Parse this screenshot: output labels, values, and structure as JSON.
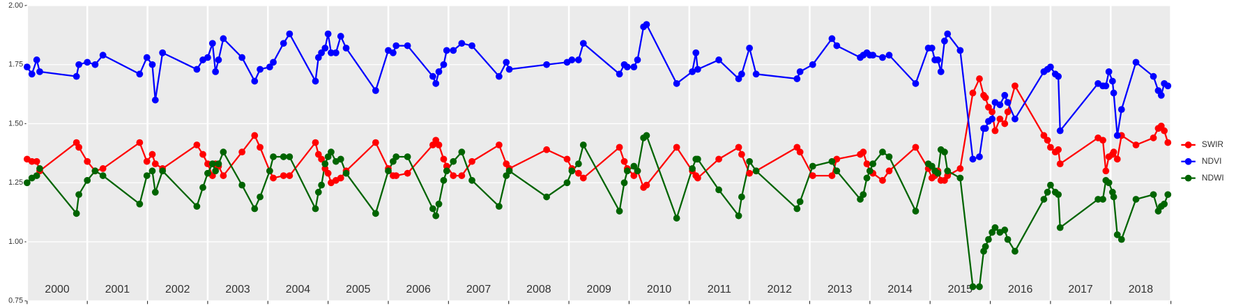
{
  "chart_data": {
    "type": "line",
    "categories": [
      "2000",
      "2001",
      "2002",
      "2003",
      "2004",
      "2005",
      "2006",
      "2007",
      "2008",
      "2009",
      "2010",
      "2011",
      "2012",
      "2013",
      "2014",
      "2015",
      "2016",
      "2017",
      "2018"
    ],
    "xlim": [
      2000,
      2019
    ],
    "xticks": [
      2000,
      2001,
      2002,
      2003,
      2004,
      2005,
      2006,
      2007,
      2008,
      2009,
      2010,
      2011,
      2012,
      2013,
      2014,
      2015,
      2016,
      2017,
      2018,
      2019
    ],
    "ylim": [
      0.75,
      2.0
    ],
    "yticks": [
      {
        "value": 0.75,
        "label": "0.75"
      },
      {
        "value": 1.0,
        "label": "1.00"
      },
      {
        "value": 1.25,
        "label": "1.25"
      },
      {
        "value": 1.5,
        "label": "1.50"
      },
      {
        "value": 1.75,
        "label": "1.75"
      },
      {
        "value": 2.0,
        "label": "2.00"
      }
    ],
    "grid": true,
    "legend": "right",
    "x": [
      2000.0,
      2000.08,
      2000.16,
      2000.21,
      2000.82,
      2000.86,
      2001.0,
      2001.13,
      2001.26,
      2001.87,
      2001.99,
      2002.08,
      2002.13,
      2002.25,
      2002.82,
      2002.92,
      2003.0,
      2003.08,
      2003.13,
      2003.18,
      2003.26,
      2003.57,
      2003.78,
      2003.87,
      2004.03,
      2004.09,
      2004.26,
      2004.36,
      2004.79,
      2004.84,
      2004.89,
      2004.95,
      2005.0,
      2005.05,
      2005.13,
      2005.21,
      2005.3,
      2005.79,
      2006.0,
      2006.08,
      2006.13,
      2006.32,
      2006.74,
      2006.79,
      2006.84,
      2006.92,
      2006.97,
      2007.08,
      2007.22,
      2007.39,
      2007.84,
      2007.96,
      2008.01,
      2008.63,
      2008.97,
      2009.05,
      2009.16,
      2009.24,
      2009.84,
      2009.92,
      2009.97,
      2010.08,
      2010.14,
      2010.24,
      2010.29,
      2010.79,
      2011.05,
      2011.11,
      2011.14,
      2011.49,
      2011.82,
      2011.87,
      2012.0,
      2012.11,
      2012.79,
      2012.84,
      2013.05,
      2013.37,
      2013.45,
      2013.84,
      2013.89,
      2013.95,
      2014.0,
      2014.05,
      2014.21,
      2014.32,
      2014.76,
      2014.97,
      2015.03,
      2015.08,
      2015.13,
      2015.18,
      2015.24,
      2015.29,
      2015.5,
      2015.71,
      2015.82,
      2015.89,
      2015.92,
      2015.97,
      2016.03,
      2016.08,
      2016.16,
      2016.24,
      2016.29,
      2016.41,
      2016.89,
      2016.95,
      2017.0,
      2017.08,
      2017.13,
      2017.16,
      2017.79,
      2017.87,
      2017.92,
      2017.97,
      2018.03,
      2018.05,
      2018.11,
      2018.18,
      2018.42,
      2018.71,
      2018.79,
      2018.84,
      2018.89,
      2018.95
    ],
    "series": [
      {
        "name": "SWIR",
        "color": "#ff0000",
        "values": [
          1.35,
          1.34,
          1.34,
          1.3,
          1.42,
          1.4,
          1.34,
          1.3,
          1.31,
          1.42,
          1.34,
          1.37,
          1.33,
          1.31,
          1.41,
          1.37,
          1.33,
          1.28,
          1.33,
          1.32,
          1.28,
          1.38,
          1.45,
          1.4,
          1.3,
          1.27,
          1.28,
          1.28,
          1.42,
          1.37,
          1.35,
          1.31,
          1.29,
          1.25,
          1.26,
          1.27,
          1.3,
          1.42,
          1.31,
          1.28,
          1.28,
          1.29,
          1.41,
          1.43,
          1.41,
          1.35,
          1.32,
          1.28,
          1.28,
          1.34,
          1.41,
          1.33,
          1.31,
          1.39,
          1.35,
          1.31,
          1.29,
          1.27,
          1.4,
          1.34,
          1.31,
          1.28,
          1.3,
          1.23,
          1.24,
          1.4,
          1.3,
          1.28,
          1.27,
          1.35,
          1.4,
          1.37,
          1.29,
          1.3,
          1.4,
          1.38,
          1.28,
          1.28,
          1.35,
          1.37,
          1.38,
          1.33,
          1.3,
          1.29,
          1.26,
          1.3,
          1.4,
          1.31,
          1.27,
          1.28,
          1.3,
          1.26,
          1.26,
          1.28,
          1.31,
          1.63,
          1.69,
          1.62,
          1.61,
          1.57,
          1.55,
          1.47,
          1.52,
          1.5,
          1.55,
          1.66,
          1.45,
          1.43,
          1.4,
          1.38,
          1.39,
          1.33,
          1.44,
          1.43,
          1.3,
          1.36,
          1.37,
          1.38,
          1.35,
          1.45,
          1.41,
          1.44,
          1.48,
          1.49,
          1.47,
          1.42
        ]
      },
      {
        "name": "NDVI",
        "color": "#0000ff",
        "values": [
          1.74,
          1.71,
          1.77,
          1.72,
          1.7,
          1.75,
          1.76,
          1.75,
          1.79,
          1.71,
          1.78,
          1.75,
          1.6,
          1.8,
          1.73,
          1.77,
          1.78,
          1.84,
          1.72,
          1.77,
          1.86,
          1.78,
          1.68,
          1.73,
          1.74,
          1.76,
          1.84,
          1.88,
          1.68,
          1.78,
          1.8,
          1.82,
          1.88,
          1.8,
          1.8,
          1.87,
          1.82,
          1.64,
          1.81,
          1.8,
          1.83,
          1.83,
          1.7,
          1.67,
          1.72,
          1.75,
          1.81,
          1.81,
          1.84,
          1.83,
          1.7,
          1.76,
          1.73,
          1.75,
          1.76,
          1.77,
          1.77,
          1.84,
          1.71,
          1.75,
          1.74,
          1.74,
          1.77,
          1.91,
          1.92,
          1.67,
          1.72,
          1.8,
          1.73,
          1.77,
          1.69,
          1.71,
          1.82,
          1.71,
          1.69,
          1.72,
          1.75,
          1.86,
          1.83,
          1.78,
          1.79,
          1.8,
          1.79,
          1.79,
          1.78,
          1.79,
          1.67,
          1.82,
          1.82,
          1.77,
          1.77,
          1.72,
          1.85,
          1.88,
          1.81,
          1.35,
          1.36,
          1.48,
          1.48,
          1.51,
          1.52,
          1.59,
          1.58,
          1.62,
          1.59,
          1.52,
          1.72,
          1.73,
          1.74,
          1.71,
          1.7,
          1.47,
          1.67,
          1.66,
          1.66,
          1.72,
          1.68,
          1.63,
          1.45,
          1.56,
          1.76,
          1.7,
          1.64,
          1.62,
          1.67,
          1.66
        ]
      },
      {
        "name": "NDWI",
        "color": "#006400",
        "values": [
          1.25,
          1.27,
          1.28,
          1.31,
          1.12,
          1.2,
          1.26,
          1.3,
          1.28,
          1.16,
          1.28,
          1.3,
          1.21,
          1.3,
          1.15,
          1.23,
          1.29,
          1.33,
          1.3,
          1.33,
          1.38,
          1.24,
          1.14,
          1.19,
          1.3,
          1.36,
          1.36,
          1.36,
          1.14,
          1.21,
          1.24,
          1.33,
          1.36,
          1.38,
          1.34,
          1.35,
          1.29,
          1.12,
          1.3,
          1.34,
          1.36,
          1.36,
          1.14,
          1.11,
          1.16,
          1.26,
          1.3,
          1.34,
          1.38,
          1.26,
          1.15,
          1.28,
          1.3,
          1.19,
          1.25,
          1.3,
          1.33,
          1.41,
          1.13,
          1.25,
          1.3,
          1.32,
          1.3,
          1.44,
          1.45,
          1.1,
          1.31,
          1.35,
          1.35,
          1.22,
          1.11,
          1.19,
          1.34,
          1.3,
          1.14,
          1.17,
          1.32,
          1.34,
          1.3,
          1.18,
          1.2,
          1.27,
          1.3,
          1.33,
          1.38,
          1.36,
          1.13,
          1.33,
          1.32,
          1.3,
          1.29,
          1.39,
          1.38,
          1.3,
          1.27,
          0.81,
          0.81,
          0.96,
          0.98,
          1.01,
          1.04,
          1.06,
          1.04,
          1.05,
          1.01,
          0.96,
          1.18,
          1.21,
          1.24,
          1.21,
          1.2,
          1.06,
          1.18,
          1.18,
          1.26,
          1.25,
          1.21,
          1.19,
          1.03,
          1.01,
          1.18,
          1.2,
          1.13,
          1.15,
          1.16,
          1.2
        ]
      }
    ]
  }
}
